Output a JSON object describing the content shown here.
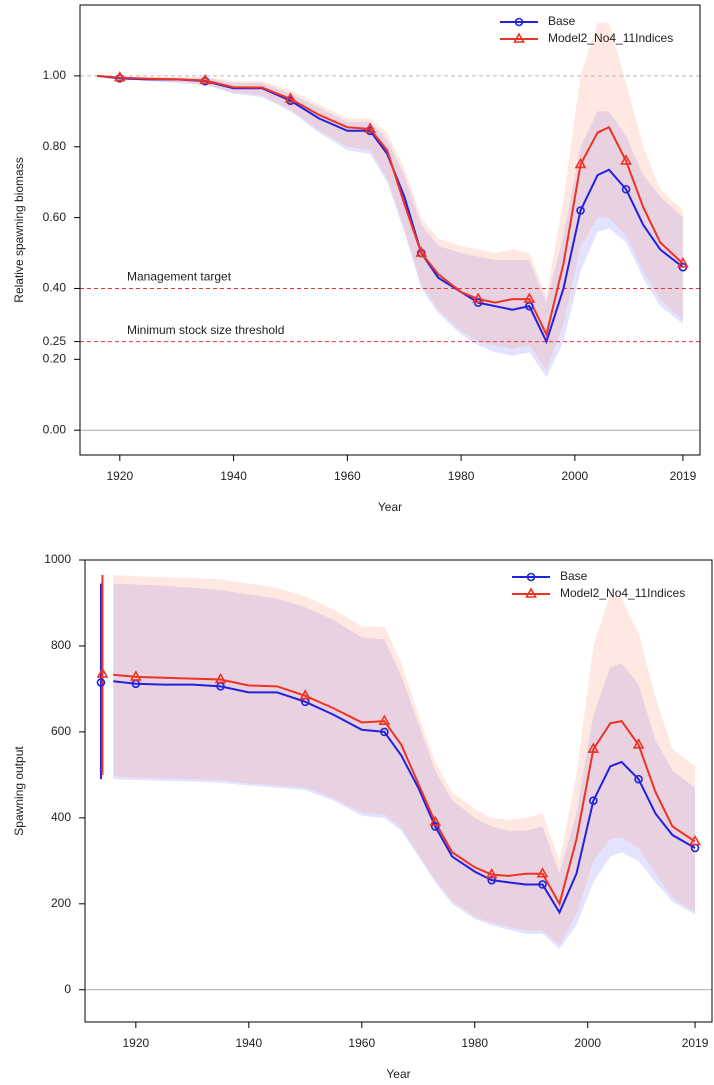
{
  "chart_data": [
    {
      "type": "line",
      "xlabel": "Year",
      "ylabel": "Relative spawning biomass",
      "xlim": [
        1913,
        2022
      ],
      "ylim": [
        -0.07,
        1.2
      ],
      "xticks": [
        1920,
        1940,
        1960,
        1980,
        2000,
        2019
      ],
      "yticks": [
        {
          "value": 0,
          "label": "0.00"
        },
        {
          "value": 0.2,
          "label": "0.20"
        },
        {
          "value": 0.25,
          "label": "0.25"
        },
        {
          "value": 0.4,
          "label": "0.40"
        },
        {
          "value": 0.6,
          "label": "0.60"
        },
        {
          "value": 0.8,
          "label": "0.80"
        },
        {
          "value": 1,
          "label": "1.00"
        }
      ],
      "zero_line": true,
      "legend": "top-right",
      "hlines": [
        {
          "value": 1,
          "color": "#bbbbbb"
        },
        {
          "value": 0.4,
          "label": "Management target",
          "color": "#ee3333"
        },
        {
          "value": 0.25,
          "label": "Minimum stock size threshold",
          "color": "#ee3333"
        }
      ],
      "x": [
        1916,
        1920,
        1925,
        1930,
        1935,
        1940,
        1945,
        1950,
        1955,
        1960,
        1964,
        1967,
        1970,
        1973,
        1976,
        1980,
        1983,
        1986,
        1989,
        1992,
        1995,
        1998,
        2001,
        2004,
        2006,
        2009,
        2012,
        2015,
        2019
      ],
      "series": [
        {
          "name": "Base",
          "color": "#2222dd",
          "band_color": "rgba(80,80,255,0.16)",
          "marker": "circle",
          "values": [
            1.0,
            0.993,
            0.99,
            0.99,
            0.985,
            0.965,
            0.965,
            0.93,
            0.88,
            0.845,
            0.845,
            0.78,
            0.66,
            0.5,
            0.43,
            0.39,
            0.36,
            0.35,
            0.34,
            0.35,
            0.25,
            0.4,
            0.62,
            0.72,
            0.735,
            0.68,
            0.58,
            0.51,
            0.46
          ],
          "lower": [
            1.0,
            0.99,
            0.985,
            0.98,
            0.975,
            0.95,
            0.94,
            0.9,
            0.84,
            0.79,
            0.78,
            0.7,
            0.56,
            0.4,
            0.33,
            0.27,
            0.24,
            0.22,
            0.21,
            0.22,
            0.15,
            0.25,
            0.45,
            0.56,
            0.57,
            0.53,
            0.43,
            0.35,
            0.3
          ],
          "upper": [
            1.0,
            0.996,
            0.995,
            0.995,
            0.995,
            0.98,
            0.98,
            0.95,
            0.91,
            0.87,
            0.87,
            0.82,
            0.72,
            0.58,
            0.52,
            0.5,
            0.49,
            0.48,
            0.48,
            0.48,
            0.36,
            0.55,
            0.8,
            0.9,
            0.9,
            0.83,
            0.72,
            0.66,
            0.6
          ]
        },
        {
          "name": "Model2_No4_11Indices",
          "color": "#ee3322",
          "band_color": "rgba(255,130,90,0.18)",
          "marker": "triangle",
          "values": [
            1.0,
            0.995,
            0.992,
            0.99,
            0.987,
            0.968,
            0.967,
            0.935,
            0.89,
            0.855,
            0.85,
            0.79,
            0.64,
            0.5,
            0.44,
            0.39,
            0.37,
            0.36,
            0.37,
            0.37,
            0.27,
            0.47,
            0.75,
            0.84,
            0.855,
            0.76,
            0.63,
            0.53,
            0.47
          ],
          "lower": [
            1.0,
            0.99,
            0.987,
            0.982,
            0.977,
            0.952,
            0.945,
            0.905,
            0.845,
            0.8,
            0.79,
            0.71,
            0.57,
            0.41,
            0.34,
            0.28,
            0.25,
            0.24,
            0.23,
            0.24,
            0.17,
            0.3,
            0.52,
            0.6,
            0.6,
            0.55,
            0.45,
            0.37,
            0.31
          ],
          "upper": [
            1.0,
            0.998,
            0.997,
            0.997,
            0.997,
            0.985,
            0.985,
            0.96,
            0.92,
            0.88,
            0.88,
            0.84,
            0.74,
            0.6,
            0.54,
            0.52,
            0.51,
            0.5,
            0.51,
            0.5,
            0.38,
            0.65,
            1.0,
            1.15,
            1.15,
            0.98,
            0.8,
            0.68,
            0.62
          ]
        }
      ]
    },
    {
      "type": "line",
      "xlabel": "Year",
      "ylabel": "Spawning output",
      "xlim": [
        1911,
        2022
      ],
      "ylim": [
        -75,
        1000
      ],
      "xticks": [
        1920,
        1940,
        1960,
        1980,
        2000,
        2019
      ],
      "yticks": [
        0,
        200,
        400,
        600,
        800,
        1000
      ],
      "zero_line": true,
      "legend": "top-right",
      "x": [
        1916,
        1920,
        1925,
        1930,
        1935,
        1940,
        1945,
        1950,
        1955,
        1960,
        1964,
        1967,
        1970,
        1973,
        1976,
        1980,
        1983,
        1986,
        1989,
        1992,
        1995,
        1998,
        2001,
        2004,
        2006,
        2009,
        2012,
        2015,
        2019
      ],
      "series": [
        {
          "name": "Base",
          "color": "#2222dd",
          "band_color": "rgba(80,80,255,0.16)",
          "marker": "circle",
          "initial": {
            "x": 1914,
            "value": 715,
            "lower": 490,
            "upper": 945
          },
          "values": [
            718,
            712,
            710,
            710,
            706,
            692,
            692,
            670,
            640,
            605,
            600,
            545,
            470,
            380,
            310,
            275,
            255,
            250,
            245,
            245,
            180,
            270,
            440,
            520,
            530,
            490,
            410,
            360,
            330
          ],
          "lower": [
            490,
            488,
            486,
            485,
            482,
            475,
            470,
            465,
            440,
            405,
            400,
            370,
            310,
            250,
            200,
            165,
            150,
            140,
            130,
            130,
            95,
            150,
            250,
            310,
            320,
            300,
            250,
            205,
            175
          ],
          "upper": [
            945,
            943,
            940,
            935,
            930,
            920,
            910,
            890,
            860,
            820,
            815,
            730,
            620,
            510,
            440,
            400,
            380,
            370,
            370,
            380,
            270,
            410,
            640,
            750,
            760,
            710,
            580,
            510,
            470
          ]
        },
        {
          "name": "Model2_No4_11Indices",
          "color": "#ee3322",
          "band_color": "rgba(255,130,90,0.18)",
          "marker": "triangle",
          "initial": {
            "x": 1914,
            "value": 735,
            "lower": 500,
            "upper": 965
          },
          "values": [
            733,
            728,
            726,
            724,
            722,
            708,
            706,
            684,
            655,
            622,
            625,
            570,
            480,
            390,
            320,
            285,
            268,
            265,
            270,
            270,
            200,
            350,
            560,
            620,
            625,
            570,
            460,
            380,
            345
          ],
          "lower": [
            497,
            494,
            492,
            490,
            488,
            480,
            476,
            470,
            446,
            412,
            408,
            378,
            316,
            256,
            206,
            170,
            156,
            146,
            138,
            138,
            104,
            175,
            300,
            350,
            355,
            330,
            270,
            215,
            180
          ],
          "upper": [
            965,
            962,
            960,
            958,
            955,
            945,
            935,
            915,
            885,
            845,
            845,
            760,
            640,
            530,
            460,
            420,
            400,
            395,
            400,
            410,
            300,
            500,
            800,
            920,
            910,
            830,
            680,
            560,
            520
          ]
        }
      ]
    }
  ]
}
